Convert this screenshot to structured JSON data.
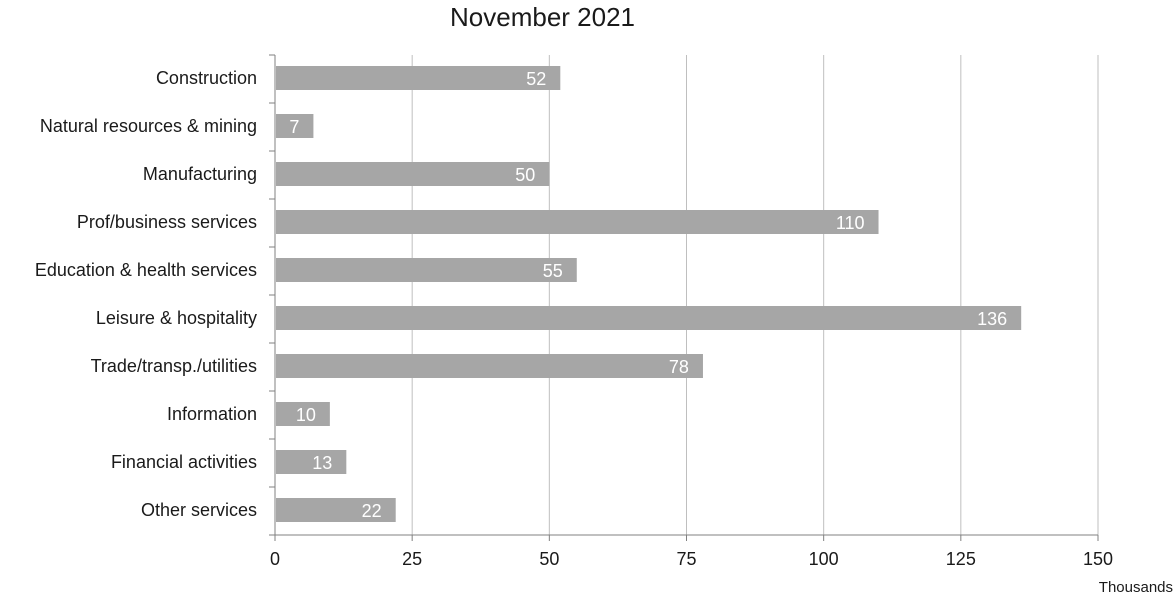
{
  "chart_data": {
    "type": "bar",
    "orientation": "horizontal",
    "title": "November 2021",
    "xlabel": "",
    "ylabel": "",
    "unit_label": "Thousands",
    "categories": [
      "Construction",
      "Natural resources & mining",
      "Manufacturing",
      "Prof/business services",
      "Education & health services",
      "Leisure & hospitality",
      "Trade/transp./utilities",
      "Information",
      "Financial activities",
      "Other services"
    ],
    "values": [
      52,
      7,
      50,
      110,
      55,
      136,
      78,
      10,
      13,
      22
    ],
    "data_labels": [
      "52",
      "7",
      "50",
      "110",
      "55",
      "136",
      "78",
      "10",
      "13",
      "22"
    ],
    "x_ticks": [
      "0",
      "25",
      "50",
      "75",
      "100",
      "125",
      "150"
    ],
    "xlim": [
      0,
      150
    ],
    "grid": true,
    "legend": "none",
    "colors": {
      "bar": "#a6a6a6",
      "grid": "#bfbfbf",
      "axis": "#808080",
      "value_label": "#ffffff"
    }
  }
}
